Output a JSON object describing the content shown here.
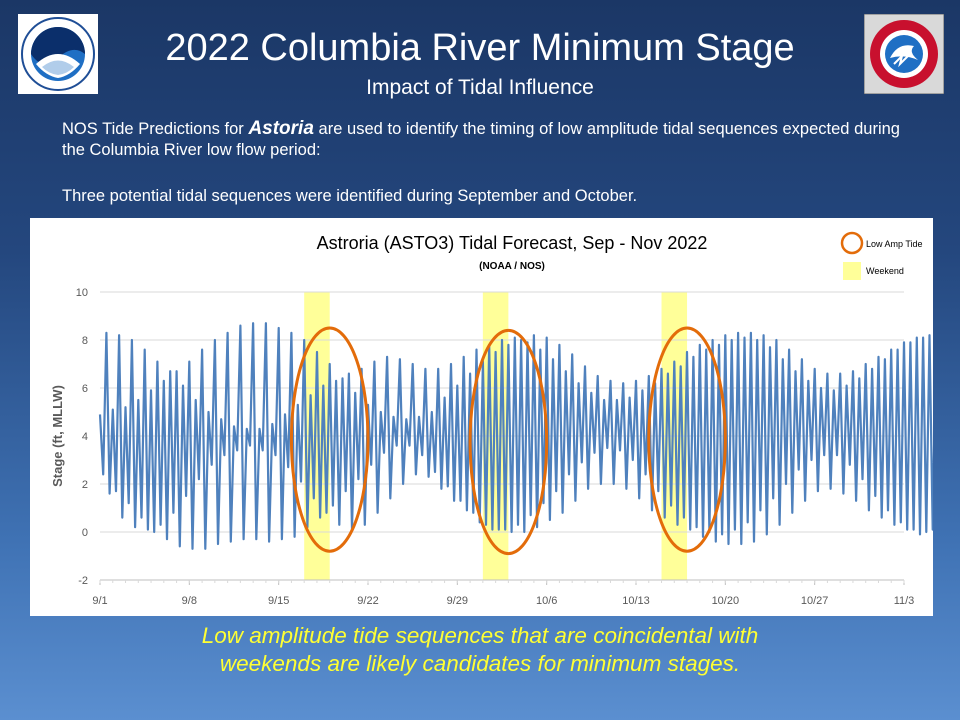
{
  "header": {
    "title": "2022 Columbia River Minimum Stage",
    "subtitle": "Impact of Tidal Influence"
  },
  "logos": {
    "left": "noaa-logo",
    "right": "nws-logo"
  },
  "intro": {
    "pre": "NOS Tide Predictions for ",
    "emphasis": "Astoria",
    "post": " are used to identify the timing of low amplitude tidal sequences expected during the Columbia River low flow period:"
  },
  "sequences_text": "Three potential tidal sequences were identified during September and October.",
  "conclusion": {
    "line1": "Low amplitude tide sequences that are coincidental with",
    "line2": "weekends are likely candidates for minimum stages."
  },
  "chart_data": {
    "type": "line",
    "title": "Astroria (ASTO3) Tidal Forecast, Sep - Nov 2022",
    "subtitle": "(NOAA / NOS)",
    "ylabel": "Stage (ft, MLLW)",
    "xlabel": "",
    "ylim": [
      -2,
      10
    ],
    "yticks": [
      -2,
      0,
      2,
      4,
      6,
      8,
      10
    ],
    "xlim": [
      "2022-09-01",
      "2022-11-03"
    ],
    "xticks": [
      "9/1",
      "9/8",
      "9/15",
      "9/22",
      "9/29",
      "10/6",
      "10/13",
      "10/20",
      "10/27",
      "11/3"
    ],
    "grid": true,
    "line_color": "#4f81bd",
    "legend": {
      "position": "top-right",
      "items": [
        {
          "label": "Low Amp Tide",
          "color": "#e36c0a",
          "shape": "circle"
        },
        {
          "label": "Weekend",
          "color": "#ffff99",
          "shape": "square"
        }
      ]
    },
    "weekends": [
      {
        "start": "2022-09-17",
        "end": "2022-09-19"
      },
      {
        "start": "2022-10-01",
        "end": "2022-10-03"
      },
      {
        "start": "2022-10-15",
        "end": "2022-10-17"
      }
    ],
    "low_amp_sequences": [
      {
        "start": "2022-09-16",
        "end": "2022-09-22",
        "ymin": -0.8,
        "ymax": 8.5
      },
      {
        "start": "2022-09-30",
        "end": "2022-10-06",
        "ymin": -0.9,
        "ymax": 8.4
      },
      {
        "start": "2022-10-14",
        "end": "2022-10-20",
        "ymin": -0.8,
        "ymax": 8.5
      }
    ],
    "series": [
      {
        "name": "",
        "x_start": "2022-09-01",
        "step_hours": 6,
        "values": [
          4.9,
          2.4,
          8.3,
          1.6,
          5.1,
          1.7,
          8.2,
          0.6,
          5.2,
          1.2,
          8.0,
          0.2,
          5.5,
          0.6,
          7.6,
          0.1,
          5.9,
          0.0,
          7.1,
          0.3,
          6.3,
          -0.3,
          6.7,
          0.8,
          6.7,
          -0.6,
          6.1,
          1.5,
          7.1,
          -0.7,
          5.5,
          2.2,
          7.6,
          -0.7,
          5.0,
          2.8,
          8.0,
          -0.5,
          4.7,
          3.2,
          8.3,
          -0.4,
          4.4,
          3.4,
          8.6,
          -0.3,
          4.3,
          3.6,
          8.7,
          -0.3,
          4.3,
          3.4,
          8.7,
          -0.4,
          4.5,
          3.2,
          8.5,
          -0.3,
          4.9,
          2.7,
          8.3,
          -0.2,
          5.3,
          2.1,
          8.0,
          0.2,
          5.7,
          1.4,
          7.5,
          0.6,
          6.1,
          0.8,
          7.0,
          1.1,
          6.3,
          0.3,
          6.4,
          1.7,
          6.6,
          0.1,
          5.8,
          2.2,
          6.8,
          0.3,
          5.3,
          2.8,
          7.1,
          0.8,
          5.0,
          3.3,
          7.3,
          1.4,
          4.8,
          3.6,
          7.2,
          2.0,
          4.7,
          3.6,
          7.0,
          2.4,
          4.8,
          3.2,
          6.8,
          2.3,
          5.0,
          2.5,
          6.8,
          1.8,
          5.6,
          1.9,
          7.0,
          1.3,
          6.1,
          1.3,
          7.3,
          0.9,
          6.6,
          0.8,
          7.6,
          0.4,
          7.1,
          0.3,
          7.8,
          0.1,
          7.5,
          0.1,
          8.0,
          0.1,
          7.8,
          -0.0,
          8.1,
          0.3,
          8.0,
          0.0,
          7.9,
          0.7,
          8.2,
          0.2,
          7.6,
          1.2,
          8.1,
          0.5,
          7.2,
          1.7,
          7.8,
          0.8,
          6.7,
          2.4,
          7.4,
          1.3,
          6.2,
          2.9,
          6.9,
          1.8,
          5.8,
          3.3,
          6.5,
          2.0,
          5.5,
          3.5,
          6.3,
          2.0,
          5.5,
          3.4,
          6.2,
          1.8,
          5.6,
          3.0,
          6.3,
          1.4,
          5.9,
          2.4,
          6.5,
          0.9,
          6.2,
          1.7,
          6.8,
          0.6,
          6.6,
          1.1,
          7.1,
          0.3,
          6.9,
          0.6,
          7.5,
          0.1,
          7.3,
          0.2,
          7.8,
          -0.2,
          7.6,
          0.0,
          8.0,
          -0.4,
          7.8,
          -0.1,
          8.2,
          -0.5,
          8.0,
          0.1,
          8.3,
          -0.5,
          8.1,
          0.4,
          8.3,
          -0.4,
          8.0,
          0.9,
          8.2,
          -0.1,
          7.7,
          1.4,
          8.0,
          0.3,
          7.2,
          2.0,
          7.6,
          0.8,
          6.7,
          2.6,
          7.2,
          1.3,
          6.3,
          3.0,
          6.8,
          1.7,
          6.0,
          3.2,
          6.6,
          1.8,
          5.9,
          3.2,
          6.6,
          1.6,
          6.1,
          2.8,
          6.7,
          1.3,
          6.4,
          2.2,
          7.0,
          0.9,
          6.8,
          1.5,
          7.3,
          0.6,
          7.2,
          0.9,
          7.6,
          0.3,
          7.6,
          0.4,
          7.9,
          0.1,
          7.9,
          0.1,
          8.1,
          -0.1,
          8.1,
          0.0,
          8.2,
          0.1,
          8.2,
          0.3,
          8.1,
          0.5,
          8.0,
          0.8,
          7.8,
          1.1,
          7.6,
          1.6,
          7.2,
          2.0,
          6.9,
          2.5,
          6.5,
          3.0,
          6.3,
          3.2,
          6.2,
          3.3,
          6.2,
          3.1,
          6.4,
          2.7,
          6.7,
          2.2,
          7.1,
          1.6,
          7.5,
          1.0,
          7.9,
          0.5,
          8.2,
          0.1,
          8.5,
          -0.2,
          8.7,
          -0.4,
          8.8,
          -0.4,
          8.8,
          -0.3,
          8.6,
          0.1,
          8.3,
          0.6,
          7.8,
          1.3,
          7.3,
          2.0,
          6.7,
          2.7,
          6.2,
          3.3,
          5.9,
          3.6,
          5.9,
          3.4,
          6.1,
          2.8,
          6.6,
          2.0,
          7.2,
          1.2,
          7.8,
          0.4,
          8.4,
          -0.3,
          8.9,
          -0.8,
          9.3,
          -1.0,
          9.4,
          -1.0,
          9.3,
          -0.7,
          9.0,
          -0.2,
          8.5,
          0.5,
          7.9,
          1.3,
          7.3,
          2.0,
          6.9,
          2.6,
          6.7,
          2.8,
          6.8,
          2.7,
          7.1,
          2.2,
          7.6,
          1.5,
          8.1,
          0.8,
          8.6,
          0.2,
          8.9,
          -0.2,
          9.0,
          -0.3,
          8.8,
          -0.1,
          8.4,
          0.3,
          7.8,
          1.0,
          7.2,
          1.7,
          6.6,
          2.4,
          6.2,
          3.0,
          6.0,
          3.3,
          6.0,
          3.2,
          6.3,
          2.8,
          6.8,
          2.1,
          7.3,
          1.4,
          7.8,
          0.7,
          8.1,
          0.2,
          8.2
        ]
      }
    ]
  }
}
